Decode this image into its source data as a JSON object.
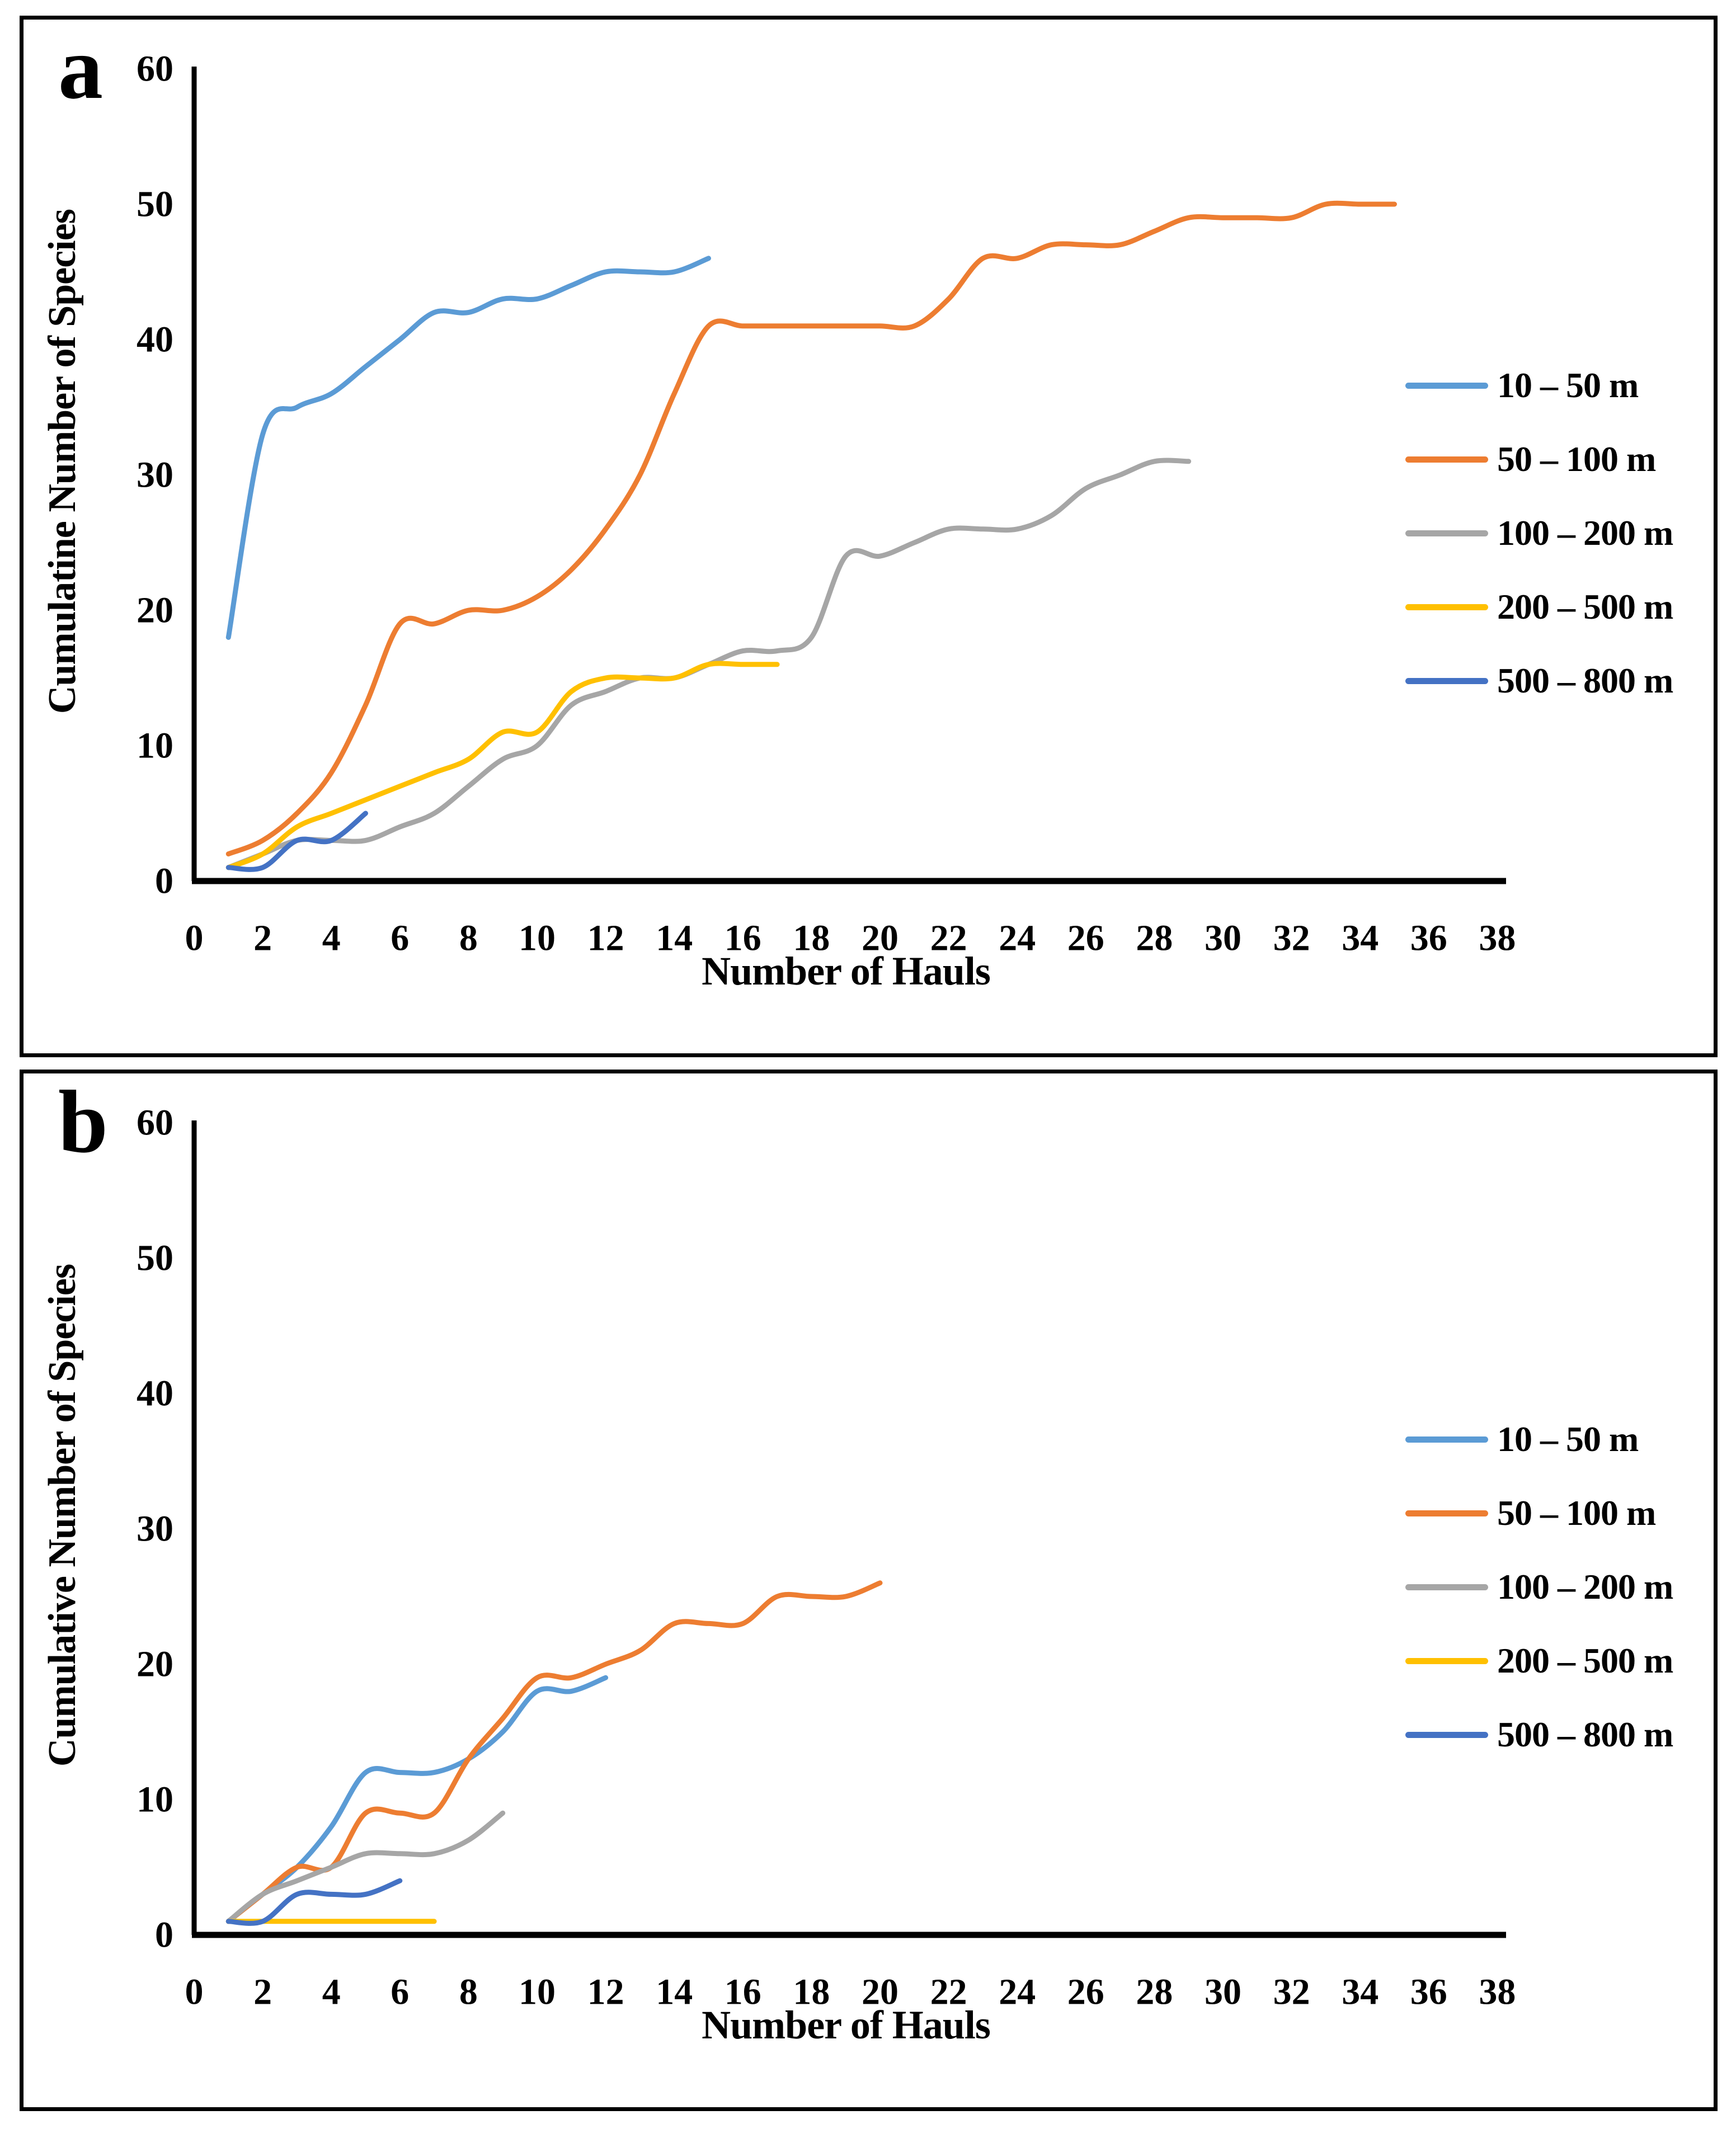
{
  "figure": {
    "panel_a_letter": "a",
    "panel_b_letter": "b",
    "xlabel": "Number of Hauls",
    "ylabel_a": "Cumulatine Number of Species",
    "ylabel_b": "Cumulative Number of Species"
  },
  "colors": {
    "depth_10_50": "#5B9BD5",
    "depth_50_100": "#ED7D31",
    "depth_100_200": "#A6A6A6",
    "depth_200_500": "#FFC000",
    "depth_500_800": "#4472C4",
    "axis": "#000000"
  },
  "chart_data": [
    {
      "type": "line",
      "panel_label": "a",
      "xlabel": "Number of Hauls",
      "ylabel": "Cumulatine Number of Species",
      "xlim": [
        0,
        38
      ],
      "ylim": [
        0,
        60
      ],
      "xticks": [
        0,
        2,
        4,
        6,
        8,
        10,
        12,
        14,
        16,
        18,
        20,
        22,
        24,
        26,
        28,
        30,
        32,
        34,
        36,
        38
      ],
      "yticks": [
        0,
        10,
        20,
        30,
        40,
        50,
        60
      ],
      "grid": false,
      "legend_position": "right",
      "x_start": 1,
      "series": [
        {
          "name": "10 – 50 m",
          "color": "#5B9BD5",
          "values": [
            18,
            33,
            35,
            36,
            38,
            40,
            42,
            42,
            43,
            43,
            44,
            45,
            45,
            45,
            46
          ]
        },
        {
          "name": "50 – 100 m",
          "color": "#ED7D31",
          "values": [
            2,
            3,
            5,
            8,
            13,
            19,
            19,
            20,
            20,
            21,
            23,
            26,
            30,
            36,
            41,
            41,
            41,
            41,
            41,
            41,
            41,
            43,
            46,
            46,
            47,
            47,
            47,
            48,
            49,
            49,
            49,
            49,
            50,
            50,
            50
          ]
        },
        {
          "name": "100 – 200 m",
          "color": "#A6A6A6",
          "values": [
            1,
            2,
            3,
            3,
            3,
            4,
            5,
            7,
            9,
            10,
            13,
            14,
            15,
            15,
            16,
            17,
            17,
            18,
            24,
            24,
            25,
            26,
            26,
            26,
            27,
            29,
            30,
            31,
            31
          ]
        },
        {
          "name": "200 – 500 m",
          "color": "#FFC000",
          "values": [
            1,
            2,
            4,
            5,
            6,
            7,
            8,
            9,
            11,
            11,
            14,
            15,
            15,
            15,
            16,
            16,
            16
          ]
        },
        {
          "name": "500 – 800 m",
          "color": "#4472C4",
          "values": [
            1,
            1,
            3,
            3,
            5
          ]
        }
      ]
    },
    {
      "type": "line",
      "panel_label": "b",
      "xlabel": "Number of Hauls",
      "ylabel": "Cumulative Number of Species",
      "xlim": [
        0,
        38
      ],
      "ylim": [
        0,
        60
      ],
      "xticks": [
        0,
        2,
        4,
        6,
        8,
        10,
        12,
        14,
        16,
        18,
        20,
        22,
        24,
        26,
        28,
        30,
        32,
        34,
        36,
        38
      ],
      "yticks": [
        0,
        10,
        20,
        30,
        40,
        50,
        60
      ],
      "grid": false,
      "legend_position": "right",
      "x_start": 1,
      "series": [
        {
          "name": "10 – 50 m",
          "color": "#5B9BD5",
          "values": [
            1,
            3,
            5,
            8,
            12,
            12,
            12,
            13,
            15,
            18,
            18,
            19
          ]
        },
        {
          "name": "50 – 100 m",
          "color": "#ED7D31",
          "values": [
            1,
            3,
            5,
            5,
            9,
            9,
            9,
            13,
            16,
            19,
            19,
            20,
            21,
            23,
            23,
            23,
            25,
            25,
            25,
            26
          ]
        },
        {
          "name": "100 – 200 m",
          "color": "#A6A6A6",
          "values": [
            1,
            3,
            4,
            5,
            6,
            6,
            6,
            7,
            9
          ]
        },
        {
          "name": "200 – 500 m",
          "color": "#FFC000",
          "values": [
            1,
            1,
            1,
            1,
            1,
            1,
            1
          ]
        },
        {
          "name": "500 – 800 m",
          "color": "#4472C4",
          "values": [
            1,
            1,
            3,
            3,
            3,
            4
          ]
        }
      ]
    }
  ]
}
